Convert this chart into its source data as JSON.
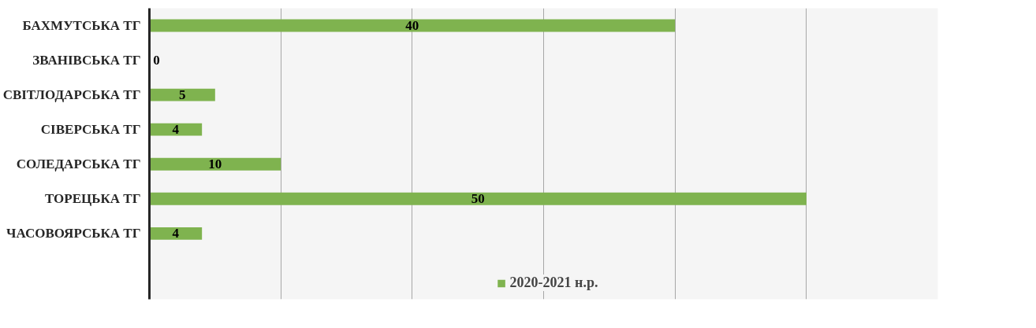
{
  "chart_data": {
    "type": "bar",
    "orientation": "horizontal",
    "categories": [
      "БАХМУТСЬКА ТГ",
      "ЗВАНІВСЬКА ТГ",
      "СВІТЛОДАРСЬКА ТГ",
      "СІВЕРСЬКА ТГ",
      "СОЛЕДАРСЬКА ТГ",
      "ТОРЕЦЬКА ТГ",
      "ЧАСОВОЯРСЬКА ТГ"
    ],
    "series": [
      {
        "name": "2020-2021 н.р.",
        "color": "#7fb34f",
        "values": [
          40,
          0,
          5,
          4,
          10,
          50,
          4
        ]
      }
    ],
    "xlim": [
      0,
      60
    ],
    "xticks": [
      {
        "value": 0,
        "label": null
      },
      {
        "value": 10,
        "label": null
      },
      {
        "value": 20,
        "label": null
      },
      {
        "value": 30,
        "label": null
      },
      {
        "value": 40,
        "label": null
      },
      {
        "value": 50,
        "label": null
      },
      {
        "value": 60,
        "label": null
      }
    ],
    "tick_labels": "y",
    "grid": "x",
    "legend": "bottom",
    "data_labels": true
  }
}
